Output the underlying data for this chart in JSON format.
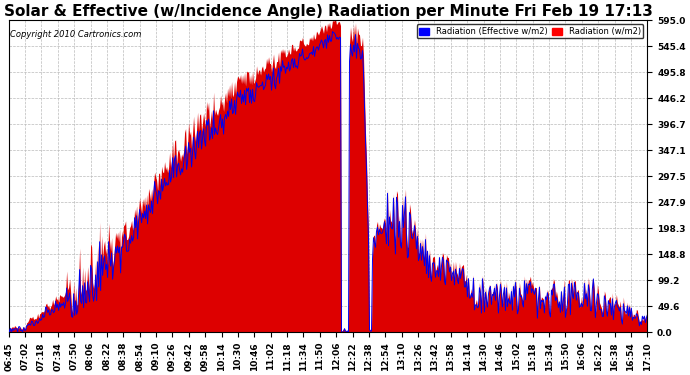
{
  "title": "Solar & Effective (w/Incidence Angle) Radiation per Minute Fri Feb 19 17:13",
  "copyright": "Copyright 2010 Cartronics.com",
  "legend_labels": [
    "Radiation (Effective w/m2)",
    "Radiation (w/m2)"
  ],
  "legend_colors": [
    "#0000ff",
    "#ff0000"
  ],
  "ylabel_values": [
    0.0,
    49.6,
    99.2,
    148.8,
    198.3,
    247.9,
    297.5,
    347.1,
    396.7,
    446.2,
    495.8,
    545.4,
    595.0
  ],
  "ymax": 595.0,
  "ymin": 0.0,
  "bg_color": "#ffffff",
  "plot_bg_color": "#ffffff",
  "grid_color": "#bbbbbb",
  "fill_color": "#dd0000",
  "line_color": "#0000ee",
  "title_fontsize": 11,
  "tick_fontsize": 6.5,
  "x_tick_labels": [
    "06:45",
    "07:02",
    "07:18",
    "07:34",
    "07:50",
    "08:06",
    "08:22",
    "08:38",
    "08:54",
    "09:10",
    "09:26",
    "09:42",
    "09:58",
    "10:14",
    "10:30",
    "10:46",
    "11:02",
    "11:18",
    "11:34",
    "11:50",
    "12:06",
    "12:22",
    "12:38",
    "12:54",
    "13:10",
    "13:26",
    "13:42",
    "13:58",
    "14:14",
    "14:30",
    "14:46",
    "15:02",
    "15:18",
    "15:34",
    "15:50",
    "16:06",
    "16:22",
    "16:38",
    "16:54",
    "17:10"
  ]
}
